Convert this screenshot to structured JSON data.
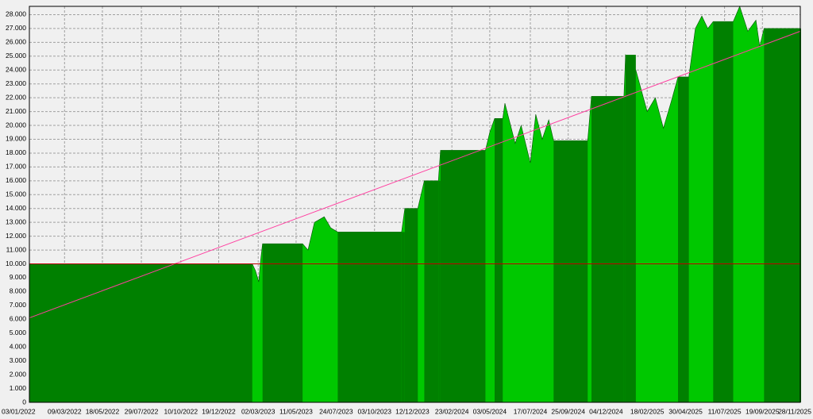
{
  "chart_data": {
    "type": "area",
    "x": [
      "03/01/2022",
      "19/02/2023",
      "25/02/2023",
      "03/03/2023",
      "06/03/2023",
      "10/03/2023",
      "23/05/2023",
      "02/06/2023",
      "14/06/2023",
      "02/07/2023",
      "14/07/2023",
      "27/07/2023",
      "22/11/2023",
      "28/11/2023",
      "22/12/2023",
      "03/01/2024",
      "29/01/2024",
      "02/02/2024",
      "25/04/2024",
      "03/05/2024",
      "12/05/2024",
      "27/05/2024",
      "31/05/2024",
      "19/06/2024",
      "30/06/2024",
      "17/07/2024",
      "27/07/2024",
      "08/08/2024",
      "20/08/2024",
      "29/08/2024",
      "31/10/2024",
      "07/11/2024",
      "06/01/2025",
      "09/01/2025",
      "28/01/2025",
      "18/02/2025",
      "05/03/2025",
      "20/03/2025",
      "04/04/2025",
      "16/04/2025",
      "06/05/2025",
      "18/05/2025",
      "30/05/2025",
      "10/06/2025",
      "20/06/2025",
      "27/07/2025",
      "08/08/2025",
      "23/08/2025",
      "07/09/2025",
      "14/09/2025",
      "22/09/2025",
      "28/11/2025"
    ],
    "series": [
      {
        "style": "area",
        "color": "#00c800",
        "values": [
          10000,
          10000,
          9500,
          8700,
          10100,
          11450,
          11450,
          11000,
          13000,
          13400,
          12600,
          12300,
          12300,
          14000,
          14000,
          16000,
          16000,
          18200,
          18200,
          19500,
          20500,
          20500,
          21600,
          18700,
          20000,
          17300,
          20800,
          19000,
          20400,
          18900,
          18900,
          22100,
          22100,
          25100,
          24000,
          21000,
          22000,
          19800,
          21800,
          23500,
          23500,
          27000,
          27900,
          27000,
          27500,
          27500,
          28600,
          26800,
          27600,
          25700,
          27000,
          27000
        ]
      },
      {
        "style": "step",
        "color": "#008000",
        "values": [
          10000,
          null,
          null,
          null,
          null,
          11450,
          null,
          null,
          null,
          null,
          null,
          12300,
          12300,
          14000,
          null,
          16000,
          16000,
          18200,
          null,
          null,
          20500,
          null,
          null,
          null,
          null,
          null,
          null,
          null,
          null,
          18900,
          null,
          22100,
          22100,
          25100,
          null,
          null,
          null,
          null,
          null,
          23500,
          null,
          null,
          null,
          null,
          27500,
          null,
          null,
          null,
          null,
          null,
          27000,
          27000
        ]
      }
    ],
    "lines": [
      {
        "color": "#ff3fa0",
        "x": [
          "03/01/2022",
          "28/11/2025"
        ],
        "values": [
          6100,
          26800
        ]
      },
      {
        "color": "#c00000",
        "x": [
          "03/01/2022",
          "28/11/2025"
        ],
        "values": [
          10000,
          10000
        ]
      }
    ],
    "xlim": [
      "03/01/2022",
      "28/11/2025"
    ],
    "xticks": [
      "03/01/2022",
      "09/03/2022",
      "18/05/2022",
      "29/07/2022",
      "10/10/2022",
      "19/12/2022",
      "02/03/2023",
      "11/05/2023",
      "24/07/2023",
      "03/10/2023",
      "12/12/2023",
      "23/02/2024",
      "03/05/2024",
      "17/07/2024",
      "25/09/2024",
      "04/12/2024",
      "18/02/2025",
      "30/04/2025",
      "11/07/2025",
      "19/09/2025",
      "28/11/2025"
    ],
    "ylim": [
      0,
      28600
    ],
    "yticks": [
      0,
      {
        "value": 1000,
        "label": "1.000"
      },
      {
        "value": 2000,
        "label": "2.000"
      },
      {
        "value": 3000,
        "label": "3.000"
      },
      {
        "value": 4000,
        "label": "4.000"
      },
      {
        "value": 5000,
        "label": "5.000"
      },
      {
        "value": 6000,
        "label": "6.000"
      },
      {
        "value": 7000,
        "label": "7.000"
      },
      {
        "value": 8000,
        "label": "8.000"
      },
      {
        "value": 9000,
        "label": "9.000"
      },
      {
        "value": 10000,
        "label": "10.000"
      },
      {
        "value": 11000,
        "label": "11.000"
      },
      {
        "value": 12000,
        "label": "12.000"
      },
      {
        "value": 13000,
        "label": "13.000"
      },
      {
        "value": 14000,
        "label": "14.000"
      },
      {
        "value": 15000,
        "label": "15.000"
      },
      {
        "value": 16000,
        "label": "16.000"
      },
      {
        "value": 17000,
        "label": "17.000"
      },
      {
        "value": 18000,
        "label": "18.000"
      },
      {
        "value": 19000,
        "label": "19.000"
      },
      {
        "value": 20000,
        "label": "20.000"
      },
      {
        "value": 21000,
        "label": "21.000"
      },
      {
        "value": 22000,
        "label": "22.000"
      },
      {
        "value": 23000,
        "label": "23.000"
      },
      {
        "value": 24000,
        "label": "24.000"
      },
      {
        "value": 25000,
        "label": "25.000"
      },
      {
        "value": 26000,
        "label": "26.000"
      },
      {
        "value": 27000,
        "label": "27.000"
      },
      {
        "value": 28000,
        "label": "28.000"
      }
    ],
    "grid": true
  }
}
